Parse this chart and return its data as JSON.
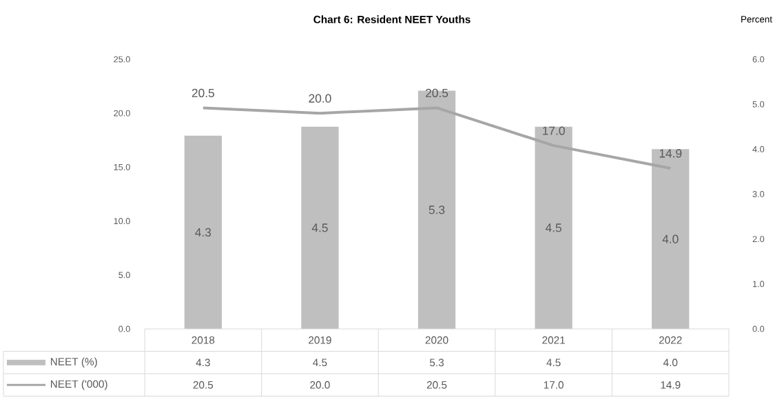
{
  "chart_data": {
    "type": "bar",
    "title": "Chart 6: Resident NEET Youths",
    "y2label": "Percent",
    "categories": [
      "2018",
      "2019",
      "2020",
      "2021",
      "2022"
    ],
    "series": [
      {
        "name": "NEET (%)",
        "color": "#bfbfbf",
        "axis": "y2",
        "values": [
          4.3,
          4.5,
          5.3,
          4.5,
          4.0
        ],
        "value_labels": [
          "4.3",
          "4.5",
          "5.3",
          "4.5",
          "4.0"
        ]
      },
      {
        "name": "NEET ('000)",
        "type": "line",
        "color": "#a6a6a6",
        "values": [
          20.5,
          20.0,
          20.5,
          17.0,
          14.9
        ],
        "value_labels": [
          "20.5",
          "20.0",
          "20.5",
          "17.0",
          "14.9"
        ]
      }
    ],
    "ylim": [
      0,
      25
    ],
    "yticks": [
      {
        "value": 0,
        "label": "0.0"
      },
      {
        "value": 5,
        "label": "5.0"
      },
      {
        "value": 10,
        "label": "10.0"
      },
      {
        "value": 15,
        "label": "15.0"
      },
      {
        "value": 20,
        "label": "20.0"
      },
      {
        "value": 25,
        "label": "25.0"
      }
    ],
    "y2lim": [
      0,
      6
    ],
    "y2ticks": [
      {
        "value": 0,
        "label": "0.0"
      },
      {
        "value": 1,
        "label": "1.0"
      },
      {
        "value": 2,
        "label": "2.0"
      },
      {
        "value": 3,
        "label": "3.0"
      },
      {
        "value": 4,
        "label": "4.0"
      },
      {
        "value": 5,
        "label": "5.0"
      },
      {
        "value": 6,
        "label": "6.0"
      }
    ],
    "legend": "bottom"
  }
}
